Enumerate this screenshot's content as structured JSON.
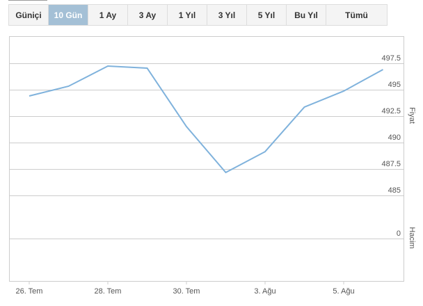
{
  "tabs": [
    "Güniçi",
    "10 Gün",
    "1 Ay",
    "3 Ay",
    "1 Yıl",
    "3 Yıl",
    "5 Yıl",
    "Bu Yıl",
    "Tümü"
  ],
  "active_tab": 1,
  "chart_data": {
    "type": "line",
    "categories": [
      "26. Tem",
      null,
      "28. Tem",
      null,
      "30. Tem",
      null,
      "3. Ağu",
      null,
      "5. Ağu",
      null
    ],
    "series": [
      {
        "name": "Fiyat",
        "color": "#7fb2dc",
        "values": [
          494.41,
          495.33,
          497.24,
          497.04,
          491.51,
          487.17,
          489.14,
          493.36,
          494.87,
          496.91
        ]
      }
    ],
    "y_label": "Fiyat",
    "ylim": [
      485,
      500
    ],
    "yticks": [
      {
        "value": 485,
        "label": "485"
      },
      {
        "value": 487.5,
        "label": "487.5"
      },
      {
        "value": 490,
        "label": "490"
      },
      {
        "value": 492.5,
        "label": "492.5"
      },
      {
        "value": 495,
        "label": "495"
      },
      {
        "value": 497.5,
        "label": "497.5"
      }
    ],
    "volume_label": "Hacim",
    "volume_yticks": [
      0
    ],
    "grid": true
  }
}
